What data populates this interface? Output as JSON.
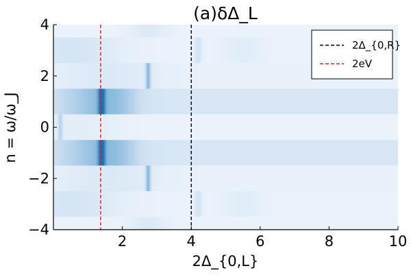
{
  "chart_data": {
    "type": "heatmap",
    "title": "(a)δΔ_L",
    "xlabel": "2Δ_{0,L}",
    "ylabel": "n = ω/ω_J",
    "xlim": [
      0,
      10
    ],
    "ylim": [
      -4,
      4
    ],
    "x_ticks": [
      2,
      4,
      6,
      8,
      10
    ],
    "y_ticks": [
      -4,
      -2,
      0,
      2,
      4
    ],
    "x_tick_labels": [
      "2",
      "4",
      "6",
      "8",
      "10"
    ],
    "y_tick_labels": [
      "−4",
      "−2",
      "0",
      "2",
      "4"
    ],
    "grid": false,
    "colormap": "blues",
    "rows": [
      {
        "n": 4,
        "base": 0.05,
        "peaks": [
          {
            "x": 2.75,
            "v": 0.12,
            "w": 0.35
          }
        ]
      },
      {
        "n": 3,
        "base": 0.05,
        "peaks": [
          {
            "x": 0.6,
            "v": 0.18,
            "w": 0.9
          },
          {
            "x": 4.2,
            "v": 0.2,
            "w": 0.08
          },
          {
            "x": 5.5,
            "v": 0.08,
            "w": 0.4
          }
        ]
      },
      {
        "n": 2,
        "base": 0.06,
        "peaks": [
          {
            "x": 1.6,
            "v": 0.12,
            "w": 1.0
          },
          {
            "x": 2.75,
            "v": 0.45,
            "w": 0.05
          }
        ]
      },
      {
        "n": 1,
        "base": 0.2,
        "peaks": [
          {
            "x": 0.8,
            "v": 0.15,
            "w": 0.8
          },
          {
            "x": 1.4,
            "v": 0.9,
            "w": 0.06
          },
          {
            "x": 1.7,
            "v": 0.25,
            "w": 0.6
          }
        ]
      },
      {
        "n": 0,
        "base": 0.05,
        "peaks": [
          {
            "x": 0.2,
            "v": 0.3,
            "w": 0.05
          },
          {
            "x": 0.8,
            "v": 0.06,
            "w": 0.8
          }
        ]
      },
      {
        "n": -1,
        "base": 0.2,
        "peaks": [
          {
            "x": 0.8,
            "v": 0.15,
            "w": 0.8
          },
          {
            "x": 1.4,
            "v": 0.9,
            "w": 0.06
          },
          {
            "x": 1.7,
            "v": 0.25,
            "w": 0.6
          }
        ]
      },
      {
        "n": -2,
        "base": 0.06,
        "peaks": [
          {
            "x": 1.6,
            "v": 0.12,
            "w": 1.0
          },
          {
            "x": 2.75,
            "v": 0.45,
            "w": 0.05
          }
        ]
      },
      {
        "n": -3,
        "base": 0.05,
        "peaks": [
          {
            "x": 0.6,
            "v": 0.18,
            "w": 0.9
          },
          {
            "x": 4.2,
            "v": 0.2,
            "w": 0.08
          },
          {
            "x": 5.5,
            "v": 0.08,
            "w": 0.4
          }
        ]
      },
      {
        "n": -4,
        "base": 0.05,
        "peaks": [
          {
            "x": 2.75,
            "v": 0.12,
            "w": 0.35
          }
        ]
      }
    ],
    "vlines": [
      {
        "name": "2Δ_{0,R}",
        "x": 4.0,
        "color": "#000000"
      },
      {
        "name": "2eV",
        "x": 1.37,
        "color": "#e31a1c"
      }
    ],
    "legend": {
      "placement": "top-right",
      "entries": [
        "2Δ_{0,R}",
        "2eV"
      ]
    }
  }
}
